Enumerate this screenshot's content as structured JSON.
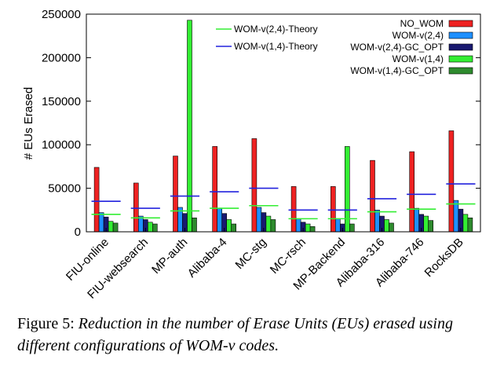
{
  "chart_data": {
    "type": "bar",
    "ylabel": "# EUs Erased",
    "ylim": [
      0,
      250000
    ],
    "yticks": [
      0,
      50000,
      100000,
      150000,
      200000,
      250000
    ],
    "ytick_labels": [
      "0",
      "50000",
      "100000",
      "150000",
      "200000",
      "250000"
    ],
    "categories": [
      "FIU-online",
      "FIU-websearch",
      "MP-auth",
      "Alibaba-4",
      "MC-stg",
      "MC-rsch",
      "MP-Backend",
      "Alibaba-316",
      "Alibaba-746",
      "RocksDB"
    ],
    "series": [
      {
        "name": "NO_WOM",
        "color": "#ee2222",
        "values": [
          74000,
          56000,
          87000,
          98000,
          107000,
          52000,
          52000,
          82000,
          92000,
          116000
        ]
      },
      {
        "name": "WOM-v(2,4)",
        "color": "#1e90ff",
        "values": [
          22000,
          18000,
          28000,
          27000,
          28000,
          15000,
          15000,
          25000,
          27000,
          36000
        ]
      },
      {
        "name": "WOM-v(2,4)-GC_OPT",
        "color": "#191970",
        "values": [
          17000,
          14000,
          21000,
          21000,
          22000,
          11000,
          9000,
          18000,
          20000,
          26000
        ]
      },
      {
        "name": "WOM-v(1,4)",
        "color": "#33ee33",
        "values": [
          12000,
          11000,
          243000,
          14000,
          18000,
          9000,
          98000,
          14000,
          18000,
          20000
        ]
      },
      {
        "name": "WOM-v(1,4)-GC_OPT",
        "color": "#2e8b2e",
        "values": [
          10000,
          9000,
          16000,
          9000,
          14000,
          6000,
          9000,
          10000,
          13000,
          16000
        ]
      }
    ],
    "theory_lines": [
      {
        "name": "WOM-v(2,4)-Theory",
        "color": "#33ee33",
        "values": [
          20000,
          16000,
          24000,
          27000,
          30000,
          15000,
          15000,
          23000,
          26000,
          32000
        ]
      },
      {
        "name": "WOM-v(1,4)-Theory",
        "color": "#2222dd",
        "values": [
          35000,
          27000,
          41000,
          46000,
          50000,
          25000,
          25000,
          38000,
          43000,
          55000
        ]
      }
    ]
  },
  "caption": {
    "label": "Figure 5:",
    "text": "Reduction in the number of Erase Units (EUs) erased using different configurations of WOM-v codes."
  }
}
